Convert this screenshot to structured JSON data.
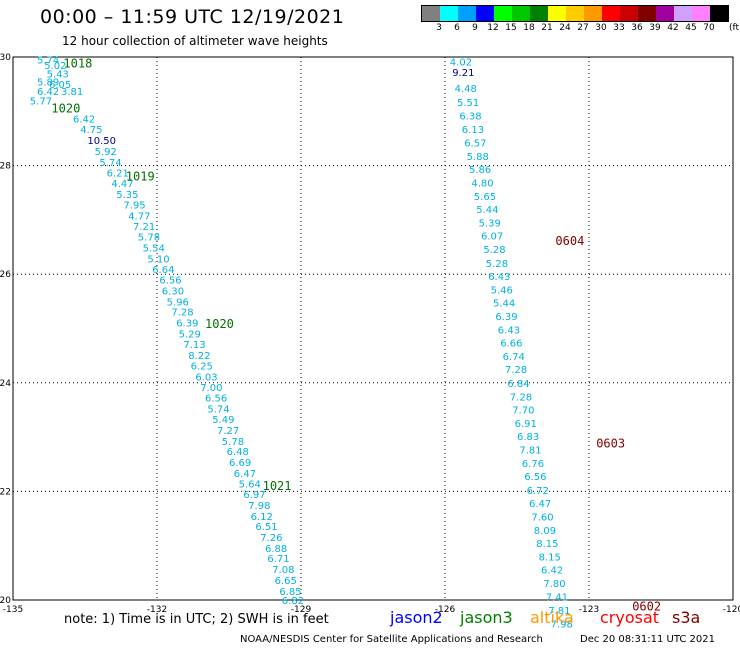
{
  "header": {
    "title": "00:00 – 11:59 UTC 12/19/2021",
    "subtitle": "12 hour collection of altimeter wave heights"
  },
  "legend": {
    "unit": "(ft)",
    "bins": [
      {
        "label": "3",
        "color": "#808080"
      },
      {
        "label": "6",
        "color": "#00ffff"
      },
      {
        "label": "9",
        "color": "#00a0ff"
      },
      {
        "label": "12",
        "color": "#0000ff"
      },
      {
        "label": "15",
        "color": "#00ff00"
      },
      {
        "label": "18",
        "color": "#00c800"
      },
      {
        "label": "21",
        "color": "#008000"
      },
      {
        "label": "24",
        "color": "#ffff00"
      },
      {
        "label": "27",
        "color": "#ffcc00"
      },
      {
        "label": "30",
        "color": "#ff9900"
      },
      {
        "label": "33",
        "color": "#ff0000"
      },
      {
        "label": "36",
        "color": "#c80000"
      },
      {
        "label": "39",
        "color": "#800000"
      },
      {
        "label": "42",
        "color": "#a000a0"
      },
      {
        "label": "45",
        "color": "#d0a0ff"
      },
      {
        "label": "70",
        "color": "#ff80ff"
      },
      {
        "label": "",
        "color": "#000000"
      }
    ]
  },
  "map": {
    "lon_range": [
      -135,
      -120
    ],
    "lat_range": [
      20,
      30
    ],
    "x_ticks": [
      "-135",
      "-132",
      "-129",
      "-126",
      "-123",
      "-120"
    ],
    "y_ticks": [
      "20",
      "22",
      "24",
      "26",
      "28",
      "30"
    ],
    "colors": {
      "cyan": "#00b0e0",
      "dark": "#000080",
      "green": "#007000",
      "maroon": "#800000"
    },
    "track1": [
      {
        "lon": -134.5,
        "lat": 29.95,
        "v": "5.74"
      },
      {
        "lon": -134.35,
        "lat": 29.85,
        "v": "5.02"
      },
      {
        "lon": -134.3,
        "lat": 29.7,
        "v": "5.43"
      },
      {
        "lon": -134.25,
        "lat": 29.5,
        "v": "6.05"
      },
      {
        "lon": -134.5,
        "lat": 29.55,
        "v": "5.89"
      },
      {
        "lon": -134.5,
        "lat": 29.37,
        "v": "6.42"
      },
      {
        "lon": -134.0,
        "lat": 29.37,
        "v": "3.81"
      },
      {
        "lon": -134.65,
        "lat": 29.2,
        "v": "5.77"
      },
      {
        "lon": -133.75,
        "lat": 28.87,
        "v": "6.42"
      },
      {
        "lon": -133.6,
        "lat": 28.67,
        "v": "4.75"
      },
      {
        "lon": -133.45,
        "lat": 28.47,
        "v": "10.50",
        "c": "dark"
      },
      {
        "lon": -133.3,
        "lat": 28.27,
        "v": "5.92"
      },
      {
        "lon": -133.2,
        "lat": 28.07,
        "v": "5.74"
      },
      {
        "lon": -133.05,
        "lat": 27.87,
        "v": "6.21"
      },
      {
        "lon": -132.95,
        "lat": 27.68,
        "v": "4.47"
      },
      {
        "lon": -132.85,
        "lat": 27.48,
        "v": "5.35"
      },
      {
        "lon": -132.7,
        "lat": 27.28,
        "v": "7.95"
      },
      {
        "lon": -132.6,
        "lat": 27.08,
        "v": "4.77"
      },
      {
        "lon": -132.5,
        "lat": 26.89,
        "v": "7.21"
      },
      {
        "lon": -132.4,
        "lat": 26.69,
        "v": "5.78"
      },
      {
        "lon": -132.3,
        "lat": 26.49,
        "v": "5.54"
      },
      {
        "lon": -132.2,
        "lat": 26.29,
        "v": "5.10"
      },
      {
        "lon": -132.1,
        "lat": 26.1,
        "v": "6.64"
      },
      {
        "lon": -131.95,
        "lat": 25.9,
        "v": "6.56"
      },
      {
        "lon": -131.9,
        "lat": 25.7,
        "v": "6.30"
      },
      {
        "lon": -131.8,
        "lat": 25.5,
        "v": "5.96"
      },
      {
        "lon": -131.7,
        "lat": 25.31,
        "v": "7.28"
      },
      {
        "lon": -131.6,
        "lat": 25.11,
        "v": "6.39"
      },
      {
        "lon": -131.55,
        "lat": 24.91,
        "v": "5.29"
      },
      {
        "lon": -131.45,
        "lat": 24.71,
        "v": "7.13"
      },
      {
        "lon": -131.35,
        "lat": 24.51,
        "v": "8.22"
      },
      {
        "lon": -131.3,
        "lat": 24.32,
        "v": "6.25"
      },
      {
        "lon": -131.2,
        "lat": 24.12,
        "v": "6.03"
      },
      {
        "lon": -131.1,
        "lat": 23.92,
        "v": "7.00"
      },
      {
        "lon": -131.0,
        "lat": 23.73,
        "v": "6.56"
      },
      {
        "lon": -130.95,
        "lat": 23.53,
        "v": "5.74"
      },
      {
        "lon": -130.85,
        "lat": 23.33,
        "v": "5.49"
      },
      {
        "lon": -130.75,
        "lat": 23.13,
        "v": "7.27"
      },
      {
        "lon": -130.65,
        "lat": 22.93,
        "v": "5.78"
      },
      {
        "lon": -130.55,
        "lat": 22.74,
        "v": "6.48"
      },
      {
        "lon": -130.5,
        "lat": 22.54,
        "v": "6.69"
      },
      {
        "lon": -130.4,
        "lat": 22.34,
        "v": "6.47"
      },
      {
        "lon": -130.3,
        "lat": 22.15,
        "v": "5.64"
      },
      {
        "lon": -130.2,
        "lat": 21.95,
        "v": "6.97"
      },
      {
        "lon": -130.1,
        "lat": 21.75,
        "v": "7.98"
      },
      {
        "lon": -130.05,
        "lat": 21.55,
        "v": "6.12"
      },
      {
        "lon": -129.95,
        "lat": 21.36,
        "v": "6.51"
      },
      {
        "lon": -129.85,
        "lat": 21.16,
        "v": "7.26"
      },
      {
        "lon": -129.75,
        "lat": 20.96,
        "v": "6.88"
      },
      {
        "lon": -129.7,
        "lat": 20.77,
        "v": "6.71"
      },
      {
        "lon": -129.6,
        "lat": 20.57,
        "v": "7.08"
      },
      {
        "lon": -129.55,
        "lat": 20.37,
        "v": "6.65"
      },
      {
        "lon": -129.45,
        "lat": 20.17,
        "v": "6.85"
      },
      {
        "lon": -129.4,
        "lat": 20.0,
        "v": "6.82"
      }
    ],
    "track2": [
      {
        "lon": -125.9,
        "lat": 29.92,
        "v": "4.02"
      },
      {
        "lon": -125.85,
        "lat": 29.72,
        "v": "9.21",
        "c": "dark"
      },
      {
        "lon": -125.8,
        "lat": 29.43,
        "v": "4.48"
      },
      {
        "lon": -125.75,
        "lat": 29.17,
        "v": "5.51"
      },
      {
        "lon": -125.7,
        "lat": 28.92,
        "v": "6.38"
      },
      {
        "lon": -125.65,
        "lat": 28.67,
        "v": "6.13"
      },
      {
        "lon": -125.6,
        "lat": 28.43,
        "v": "6.57"
      },
      {
        "lon": -125.55,
        "lat": 28.18,
        "v": "5.88"
      },
      {
        "lon": -125.5,
        "lat": 27.94,
        "v": "5.86"
      },
      {
        "lon": -125.45,
        "lat": 27.69,
        "v": "4.80"
      },
      {
        "lon": -125.4,
        "lat": 27.44,
        "v": "5.65"
      },
      {
        "lon": -125.35,
        "lat": 27.2,
        "v": "5.44"
      },
      {
        "lon": -125.3,
        "lat": 26.95,
        "v": "5.39"
      },
      {
        "lon": -125.25,
        "lat": 26.71,
        "v": "6.07"
      },
      {
        "lon": -125.2,
        "lat": 26.46,
        "v": "5.28"
      },
      {
        "lon": -125.15,
        "lat": 26.21,
        "v": "5.28"
      },
      {
        "lon": -125.1,
        "lat": 25.97,
        "v": "6.43"
      },
      {
        "lon": -125.05,
        "lat": 25.72,
        "v": "5.46"
      },
      {
        "lon": -125.0,
        "lat": 25.48,
        "v": "5.44"
      },
      {
        "lon": -124.95,
        "lat": 25.23,
        "v": "6.39"
      },
      {
        "lon": -124.9,
        "lat": 24.98,
        "v": "6.43"
      },
      {
        "lon": -124.85,
        "lat": 24.74,
        "v": "6.66"
      },
      {
        "lon": -124.8,
        "lat": 24.49,
        "v": "6.74"
      },
      {
        "lon": -124.75,
        "lat": 24.25,
        "v": "7.28"
      },
      {
        "lon": -124.7,
        "lat": 24.0,
        "v": "6.84"
      },
      {
        "lon": -124.65,
        "lat": 23.75,
        "v": "7.28"
      },
      {
        "lon": -124.6,
        "lat": 23.51,
        "v": "7.70"
      },
      {
        "lon": -124.55,
        "lat": 23.26,
        "v": "6.91"
      },
      {
        "lon": -124.5,
        "lat": 23.02,
        "v": "6.83"
      },
      {
        "lon": -124.45,
        "lat": 22.77,
        "v": "7.81"
      },
      {
        "lon": -124.4,
        "lat": 22.52,
        "v": "6.76"
      },
      {
        "lon": -124.35,
        "lat": 22.28,
        "v": "6.56"
      },
      {
        "lon": -124.3,
        "lat": 22.03,
        "v": "6.72"
      },
      {
        "lon": -124.25,
        "lat": 21.79,
        "v": "6.47"
      },
      {
        "lon": -124.2,
        "lat": 21.54,
        "v": "7.60"
      },
      {
        "lon": -124.15,
        "lat": 21.29,
        "v": "8.09"
      },
      {
        "lon": -124.1,
        "lat": 21.05,
        "v": "8.15"
      },
      {
        "lon": -124.05,
        "lat": 20.8,
        "v": "8.15"
      },
      {
        "lon": -124.0,
        "lat": 20.56,
        "v": "6.42"
      },
      {
        "lon": -123.95,
        "lat": 20.31,
        "v": "7.80"
      },
      {
        "lon": -123.9,
        "lat": 20.06,
        "v": "7.41"
      },
      {
        "lon": -123.85,
        "lat": 19.82,
        "v": "7.81"
      },
      {
        "lon": -123.8,
        "lat": 19.57,
        "v": "7.98"
      }
    ],
    "time_labels": [
      {
        "lon": -133.95,
        "lat": 29.9,
        "v": "1018",
        "c": "green"
      },
      {
        "lon": -134.2,
        "lat": 29.07,
        "v": "1020",
        "c": "green"
      },
      {
        "lon": -132.65,
        "lat": 27.82,
        "v": "1019",
        "c": "green"
      },
      {
        "lon": -131.0,
        "lat": 25.1,
        "v": "1020",
        "c": "green"
      },
      {
        "lon": -129.8,
        "lat": 22.12,
        "v": "1021",
        "c": "green"
      },
      {
        "lon": -123.7,
        "lat": 26.63,
        "v": "0604",
        "c": "maroon"
      },
      {
        "lon": -122.85,
        "lat": 22.9,
        "v": "0603",
        "c": "maroon"
      },
      {
        "lon": -122.1,
        "lat": 19.9,
        "v": "0602",
        "c": "maroon"
      }
    ]
  },
  "footer": {
    "note": "note: 1) Time is in UTC; 2) SWH is in feet",
    "satellites": [
      {
        "name": "jason2",
        "color": "#0000ff"
      },
      {
        "name": "jason3",
        "color": "#008000"
      },
      {
        "name": "altika",
        "color": "#ff9900"
      },
      {
        "name": "cryosat",
        "color": "#ff0000"
      },
      {
        "name": "s3a",
        "color": "#800000"
      }
    ],
    "credit": "NOAA/NESDIS Center for Satellite Applications and Research",
    "timestamp": "Dec 20 08:31:11 UTC 2021"
  }
}
